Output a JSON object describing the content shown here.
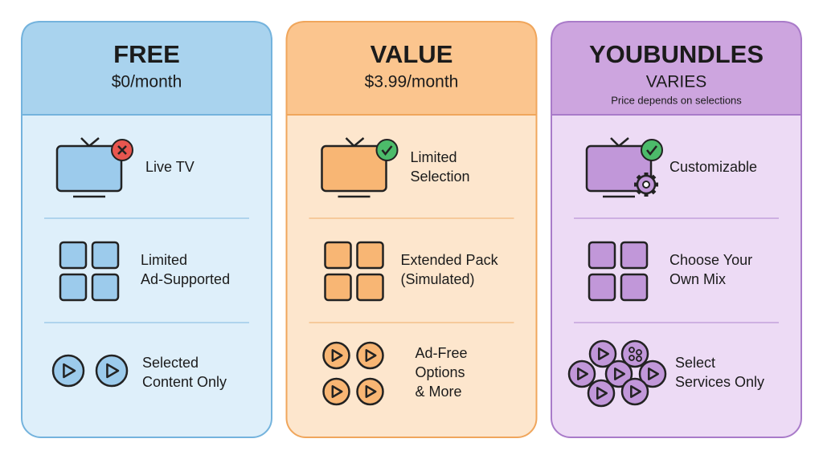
{
  "plans": [
    {
      "name": "FREE",
      "price": "$0/month",
      "features": [
        {
          "lines": [
            "Live TV"
          ]
        },
        {
          "lines": [
            "Limited",
            "Ad-Supported"
          ]
        },
        {
          "lines": [
            "Selected",
            "Content Only"
          ]
        }
      ]
    },
    {
      "name": "VALUE",
      "price": "$3.99/month",
      "features": [
        {
          "lines": [
            "Limited",
            "Selection"
          ]
        },
        {
          "lines": [
            "Extended Pack",
            "(Simulated)"
          ]
        },
        {
          "lines": [
            "Ad-Free",
            "Options",
            "& More"
          ]
        }
      ]
    },
    {
      "name": "YOUBUNDLES",
      "price": "VARIES",
      "note": "Price depends on selections",
      "features": [
        {
          "lines": [
            "Customizable"
          ]
        },
        {
          "lines": [
            "Choose Your",
            "Own Mix"
          ]
        },
        {
          "lines": [
            "Select",
            "Services Only"
          ]
        }
      ]
    }
  ]
}
